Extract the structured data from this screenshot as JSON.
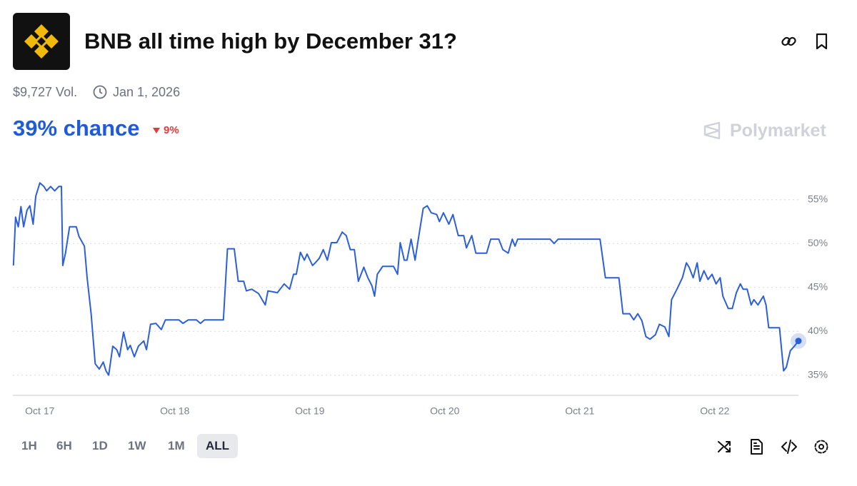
{
  "header": {
    "title": "BNB all time high by December 31?",
    "volume": "$9,727 Vol.",
    "end_date": "Jan 1, 2026",
    "chance": "39% chance",
    "change": "9%",
    "brand": "Polymarket"
  },
  "chart_data": {
    "type": "line",
    "x": [
      -0.196,
      -0.18,
      -0.16,
      -0.14,
      -0.12,
      -0.095,
      -0.074,
      -0.05,
      -0.03,
      0.0,
      0.03,
      0.05,
      0.08,
      0.11,
      0.14,
      0.16,
      0.17,
      0.19,
      0.22,
      0.27,
      0.29,
      0.33,
      0.35,
      0.38,
      0.41,
      0.44,
      0.47,
      0.49,
      0.51,
      0.54,
      0.57,
      0.59,
      0.62,
      0.65,
      0.67,
      0.7,
      0.73,
      0.77,
      0.79,
      0.82,
      0.86,
      0.9,
      0.93,
      1.03,
      1.06,
      1.1,
      1.16,
      1.19,
      1.22,
      1.36,
      1.39,
      1.44,
      1.47,
      1.51,
      1.53,
      1.57,
      1.62,
      1.67,
      1.69,
      1.76,
      1.81,
      1.85,
      1.88,
      1.9,
      1.93,
      1.96,
      1.98,
      2.02,
      2.04,
      2.07,
      2.1,
      2.13,
      2.16,
      2.2,
      2.24,
      2.27,
      2.3,
      2.33,
      2.36,
      2.4,
      2.43,
      2.46,
      2.48,
      2.5,
      2.54,
      2.62,
      2.65,
      2.67,
      2.7,
      2.72,
      2.75,
      2.78,
      2.81,
      2.84,
      2.87,
      2.9,
      2.94,
      2.96,
      2.99,
      3.03,
      3.06,
      3.1,
      3.14,
      3.16,
      3.2,
      3.23,
      3.31,
      3.34,
      3.4,
      3.43,
      3.47,
      3.5,
      3.52,
      3.54,
      3.78,
      3.81,
      3.84,
      4.15,
      4.19,
      4.29,
      4.32,
      4.37,
      4.4,
      4.43,
      4.46,
      4.49,
      4.52,
      4.56,
      4.59,
      4.63,
      4.66,
      4.68,
      4.72,
      4.76,
      4.79,
      4.81,
      4.84,
      4.87,
      4.89,
      4.92,
      4.95,
      4.98,
      5.01,
      5.04,
      5.06,
      5.1,
      5.13,
      5.16,
      5.19,
      5.21,
      5.24,
      5.27,
      5.29,
      5.32,
      5.36,
      5.38,
      5.4,
      5.48,
      5.51,
      5.53,
      5.56,
      5.59,
      5.62
    ],
    "series": [
      {
        "color": "#2b5fd9",
        "values": [
          47.5,
          53.0,
          51.9,
          54.2,
          51.9,
          53.8,
          54.3,
          52.2,
          55.4,
          56.9,
          56.5,
          56.0,
          56.5,
          56.0,
          56.5,
          56.5,
          47.5,
          48.9,
          51.9,
          51.9,
          50.8,
          49.7,
          46.1,
          42.0,
          36.3,
          35.7,
          36.5,
          35.5,
          35.0,
          38.3,
          37.9,
          37.1,
          39.9,
          37.9,
          38.4,
          37.1,
          38.3,
          38.9,
          37.9,
          40.8,
          40.9,
          40.2,
          41.3,
          41.3,
          40.9,
          41.3,
          41.3,
          40.9,
          41.3,
          41.3,
          49.4,
          49.4,
          45.7,
          45.7,
          44.6,
          44.8,
          44.3,
          43.0,
          44.6,
          44.4,
          45.4,
          44.8,
          46.5,
          46.5,
          49.0,
          48.1,
          48.8,
          47.5,
          47.8,
          48.3,
          49.3,
          48.1,
          50.1,
          50.1,
          51.3,
          50.9,
          49.3,
          49.3,
          45.7,
          47.3,
          46.1,
          45.2,
          44.0,
          46.5,
          47.4,
          47.4,
          46.5,
          50.1,
          48.1,
          48.1,
          50.5,
          48.1,
          51.1,
          54.0,
          54.3,
          53.5,
          53.3,
          52.5,
          53.5,
          52.2,
          53.3,
          50.9,
          50.9,
          49.5,
          50.9,
          48.9,
          48.9,
          50.5,
          50.5,
          49.3,
          48.9,
          50.5,
          49.7,
          50.5,
          50.5,
          50.0,
          50.5,
          50.5,
          46.1,
          46.1,
          42.0,
          42.0,
          41.3,
          42.0,
          41.2,
          39.4,
          39.1,
          39.6,
          40.8,
          40.5,
          39.4,
          43.6,
          44.8,
          46.1,
          47.8,
          47.3,
          46.1,
          47.8,
          45.7,
          46.9,
          45.9,
          46.5,
          45.4,
          46.1,
          44.0,
          42.6,
          42.6,
          44.4,
          45.4,
          44.8,
          44.8,
          43.0,
          43.6,
          43.0,
          44.0,
          43.0,
          40.4,
          40.4,
          35.5,
          35.9,
          37.8,
          38.3,
          38.9
        ]
      }
    ],
    "xlim": [
      -0.2,
      5.62
    ],
    "ylim": [
      32.7,
      59
    ],
    "xticks": [
      {
        "value": 0,
        "label": "Oct 17"
      },
      {
        "value": 1,
        "label": "Oct 18"
      },
      {
        "value": 2,
        "label": "Oct 19"
      },
      {
        "value": 3,
        "label": "Oct 20"
      },
      {
        "value": 4,
        "label": "Oct 21"
      },
      {
        "value": 5,
        "label": "Oct 22"
      }
    ],
    "yticks": [
      {
        "value": 35,
        "label": "35%"
      },
      {
        "value": 40,
        "label": "40%"
      },
      {
        "value": 45,
        "label": "45%"
      },
      {
        "value": 50,
        "label": "50%"
      },
      {
        "value": 55,
        "label": "55%"
      }
    ],
    "grid": true
  },
  "controls": {
    "ranges": [
      "1H",
      "6H",
      "1D",
      "1W",
      "1M",
      "ALL"
    ],
    "selected": "ALL"
  }
}
